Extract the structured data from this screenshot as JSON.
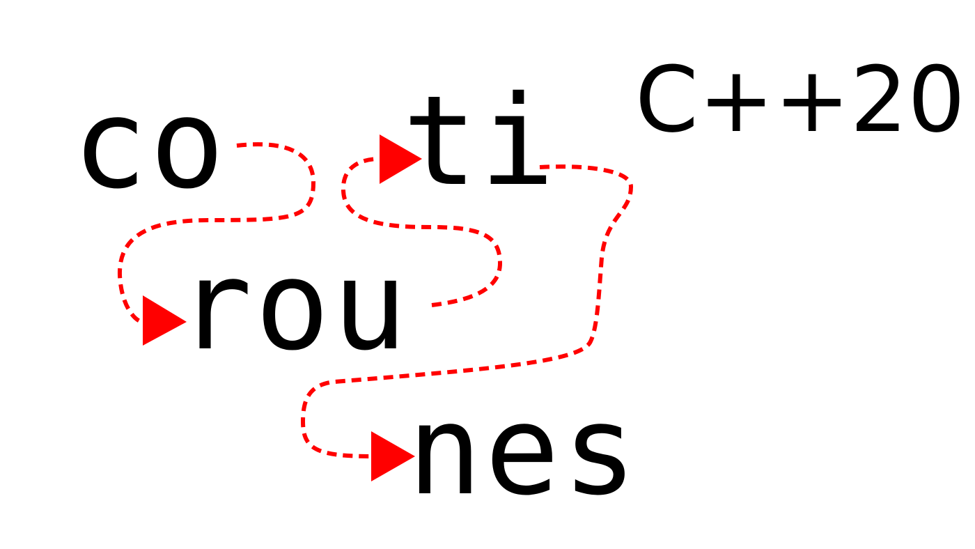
{
  "fragments": {
    "first": "co",
    "second": "ti",
    "third": "rou",
    "fourth": "nes"
  },
  "version_label": "C++20",
  "colors": {
    "text": "#000000",
    "flow": "#ff0000",
    "background": "#ffffff"
  },
  "icons": [
    "arrow-head-icon",
    "dashed-flow-path"
  ]
}
